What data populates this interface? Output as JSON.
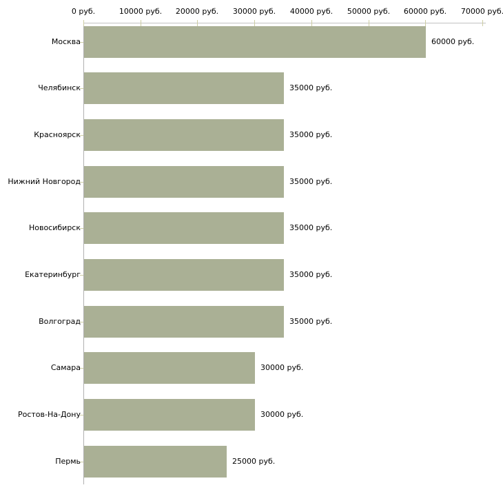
{
  "chart_data": {
    "type": "bar",
    "orientation": "horizontal",
    "title": "",
    "xlabel": "",
    "ylabel": "",
    "grid": false,
    "legend": null,
    "xlim": [
      0,
      70000
    ],
    "categories": [
      "Москва",
      "Челябинск",
      "Красноярск",
      "Нижний Новгород",
      "Новосибирск",
      "Екатеринбург",
      "Волгоград",
      "Самара",
      "Ростов-На-Дону",
      "Пермь"
    ],
    "values": [
      60000,
      35000,
      35000,
      35000,
      35000,
      35000,
      35000,
      30000,
      30000,
      25000
    ],
    "value_labels": [
      "60000 руб.",
      "35000 руб.",
      "35000 руб.",
      "35000 руб.",
      "35000 руб.",
      "35000 руб.",
      "35000 руб.",
      "30000 руб.",
      "30000 руб.",
      "25000 руб."
    ],
    "x_ticks": [
      {
        "value": 0,
        "label": "0 руб."
      },
      {
        "value": 10000,
        "label": "10000 руб."
      },
      {
        "value": 20000,
        "label": "20000 руб."
      },
      {
        "value": 30000,
        "label": "30000 руб."
      },
      {
        "value": 40000,
        "label": "40000 руб."
      },
      {
        "value": 50000,
        "label": "50000 руб."
      },
      {
        "value": 60000,
        "label": "60000 руб."
      },
      {
        "value": 70000,
        "label": "70000 руб."
      }
    ],
    "colors": {
      "bar": "#aab095",
      "x_axis_line": "#c0c0c0",
      "y_axis_line": "#b0b0b0",
      "tick": "#cdcda3",
      "text": "#000000",
      "background": "#ffffff"
    }
  }
}
